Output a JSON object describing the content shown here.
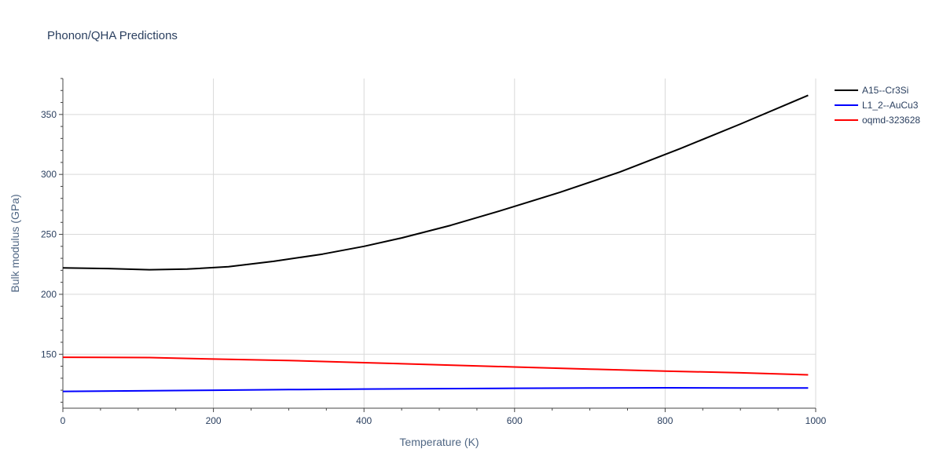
{
  "chart_data": {
    "type": "line",
    "title": "Phonon/QHA Predictions",
    "xlabel": "Temperature (K)",
    "ylabel": "Bulk modulus (GPa)",
    "xlim": [
      0,
      1000
    ],
    "ylim": [
      105,
      380
    ],
    "x_ticks": [
      0,
      200,
      400,
      600,
      800,
      1000
    ],
    "y_ticks": [
      150,
      200,
      250,
      300,
      350
    ],
    "grid": true,
    "legend_position": "top-right",
    "series": [
      {
        "name": "A15--Cr3Si",
        "color": "#000000",
        "x": [
          0,
          60,
          115,
          165,
          220,
          280,
          345,
          400,
          450,
          515,
          580,
          660,
          740,
          820,
          900,
          990
        ],
        "y": [
          222,
          221.5,
          220.5,
          221,
          223,
          227.5,
          233.5,
          240,
          247,
          257.5,
          269.5,
          285,
          302,
          321.5,
          342,
          366
        ]
      },
      {
        "name": "L1_2--AuCu3",
        "color": "#0000ff",
        "x": [
          0,
          100,
          200,
          300,
          400,
          500,
          600,
          700,
          800,
          900,
          990
        ],
        "y": [
          119,
          119.5,
          120,
          120.5,
          121,
          121.3,
          121.6,
          121.8,
          122,
          121.9,
          121.8
        ]
      },
      {
        "name": "oqmd-323628",
        "color": "#ff0000",
        "x": [
          0,
          115,
          200,
          300,
          400,
          500,
          600,
          700,
          800,
          900,
          990
        ],
        "y": [
          147.5,
          147.2,
          146,
          144.8,
          143,
          141.2,
          139.4,
          137.6,
          136,
          134.5,
          132.8
        ]
      }
    ]
  }
}
